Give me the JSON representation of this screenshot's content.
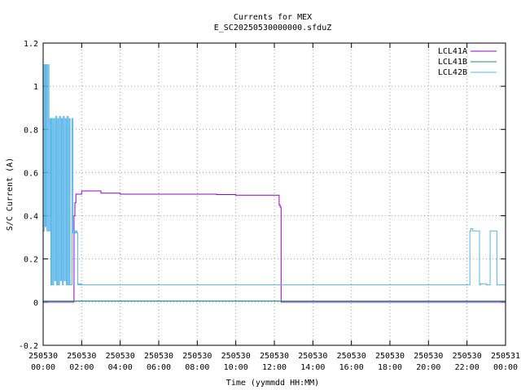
{
  "chart_data": {
    "type": "line",
    "title": "Currents for MEX",
    "subtitle": "E_SC20250530000000.sfduZ",
    "xlabel": "Time (yymmdd HH:MM)",
    "ylabel": "S/C Current (A)",
    "xlim_hours": [
      0,
      24
    ],
    "ylim": [
      -0.2,
      1.2
    ],
    "x_ticks": [
      {
        "date": "250530",
        "time": "00:00"
      },
      {
        "date": "250530",
        "time": "02:00"
      },
      {
        "date": "250530",
        "time": "04:00"
      },
      {
        "date": "250530",
        "time": "06:00"
      },
      {
        "date": "250530",
        "time": "08:00"
      },
      {
        "date": "250530",
        "time": "10:00"
      },
      {
        "date": "250530",
        "time": "12:00"
      },
      {
        "date": "250530",
        "time": "14:00"
      },
      {
        "date": "250530",
        "time": "16:00"
      },
      {
        "date": "250530",
        "time": "18:00"
      },
      {
        "date": "250530",
        "time": "20:00"
      },
      {
        "date": "250530",
        "time": "22:00"
      },
      {
        "date": "250531",
        "time": "00:00"
      }
    ],
    "y_ticks": [
      "-0.2",
      "0",
      "0.2",
      "0.4",
      "0.6",
      "0.8",
      "1",
      "1.2"
    ],
    "grid": true,
    "legend_position": "top-right",
    "series": [
      {
        "name": "LCL41A",
        "color": "#9400d3",
        "x": [
          0.0,
          1.55,
          1.6,
          1.65,
          1.7,
          2.0,
          3.0,
          4.0,
          5.0,
          6.0,
          7.0,
          8.0,
          9.0,
          10.0,
          11.0,
          12.0,
          12.2,
          12.25,
          12.3,
          12.35,
          13.0,
          16.0,
          20.0,
          24.0
        ],
        "y": [
          0.0,
          0.0,
          0.4,
          0.46,
          0.5,
          0.515,
          0.505,
          0.5,
          0.5,
          0.5,
          0.5,
          0.5,
          0.498,
          0.495,
          0.495,
          0.495,
          0.495,
          0.45,
          0.44,
          0.0,
          0.0,
          0.0,
          0.0,
          0.0
        ]
      },
      {
        "name": "LCL41B",
        "color": "#009e73",
        "x": [
          0,
          24
        ],
        "y": [
          0.005,
          0.005
        ]
      },
      {
        "name": "LCL42B",
        "color": "#56b4e9",
        "x": [
          0.0,
          0.05,
          0.1,
          0.15,
          0.2,
          0.25,
          0.3,
          0.35,
          0.4,
          0.45,
          0.5,
          0.55,
          0.6,
          0.65,
          0.7,
          0.75,
          0.8,
          0.85,
          0.9,
          0.95,
          1.0,
          1.05,
          1.1,
          1.15,
          1.2,
          1.25,
          1.3,
          1.35,
          1.4,
          1.5,
          1.55,
          1.6,
          1.65,
          1.7,
          1.75,
          1.8,
          1.85,
          1.9,
          1.95,
          2.0,
          5.0,
          10.0,
          15.0,
          20.0,
          22.1,
          22.15,
          22.2,
          22.3,
          22.6,
          22.65,
          22.7,
          23.0,
          23.1,
          23.2,
          23.25,
          23.3,
          23.35,
          23.45,
          23.5,
          23.55,
          24.0
        ],
        "y": [
          0.33,
          1.1,
          0.35,
          1.1,
          0.33,
          1.1,
          0.33,
          0.85,
          0.08,
          0.85,
          0.08,
          0.85,
          0.1,
          0.86,
          0.08,
          0.85,
          0.08,
          0.86,
          0.1,
          0.85,
          0.08,
          0.86,
          0.1,
          0.85,
          0.08,
          0.86,
          0.08,
          0.85,
          0.08,
          0.85,
          0.32,
          0.33,
          0.32,
          0.33,
          0.32,
          0.08,
          0.085,
          0.08,
          0.085,
          0.08,
          0.08,
          0.08,
          0.08,
          0.08,
          0.08,
          0.33,
          0.34,
          0.33,
          0.33,
          0.08,
          0.085,
          0.08,
          0.08,
          0.33,
          0.33,
          0.33,
          0.33,
          0.33,
          0.33,
          0.08,
          0.08
        ]
      }
    ]
  }
}
